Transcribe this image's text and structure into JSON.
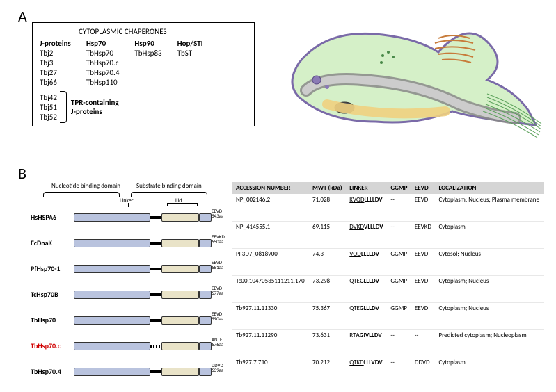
{
  "panelA": {
    "label": "A",
    "box_title": "CYTOPLASMIC CHAPERONES",
    "columns": [
      {
        "head": "J-proteins",
        "items": [
          "Tbj2",
          "Tbj3",
          "Tbj27",
          "Tbj66"
        ]
      },
      {
        "head": "Hsp70",
        "items": [
          "TbHsp70",
          "TbHsp70.c",
          "TbHsp70.4",
          "TbHsp110"
        ]
      },
      {
        "head": "Hsp90",
        "items": [
          "TbHsp83"
        ]
      },
      {
        "head": "Hop/STI",
        "items": [
          "TbSTI"
        ]
      }
    ],
    "tpr": {
      "items": [
        "Tbj42",
        "Tbj51",
        "Tbj52"
      ],
      "label_line1": "TPR-containing",
      "label_line2": "J-proteins"
    }
  },
  "panelB": {
    "label": "B",
    "domain_headers": {
      "nbd": "Nucleotide binding domain",
      "sbd": "Substrate binding domain",
      "linker": "Linker",
      "lid": "Lid"
    },
    "colors": {
      "nbd": "#b9c3de",
      "sbd": "#e9e3c8",
      "lid": "#b9c3de"
    },
    "table_headers": [
      "ACCESSION NUMBER",
      "MWT (kDa)",
      "LINKER",
      "GGMP",
      "EEVD",
      "LOCALIZATION"
    ],
    "proteins": [
      {
        "name": "HsHSPA6",
        "tail": "EEVD",
        "aa": "643aa",
        "dash": false,
        "accession": "NP_002146.2",
        "mwt": "71.028",
        "linker_u": "KVQD",
        "linker_b": "LLLLDV",
        "ggmp": "--",
        "eevd": "EEVD",
        "loc": "Cytoplasm; Nucleus; Plasma membrane"
      },
      {
        "name": "EcDnaK",
        "tail": "EEVKD",
        "aa": "650aa",
        "dash": false,
        "accession": "NP_414555.1",
        "mwt": "69.115",
        "linker_u": "DVKD",
        "linker_b": "VLLLDV",
        "ggmp": "--",
        "eevd": "EEVKD",
        "loc": "Cytoplasm"
      },
      {
        "name": "PfHsp70-1",
        "tail": "EEVD",
        "aa": "681aa",
        "dash": false,
        "accession": "PF3D7_0818900",
        "mwt": "74.3",
        "linker_u": "VQD",
        "linker_b": "LLLLDV",
        "ggmp": "GGMP",
        "eevd": "EEVD",
        "loc": "Cytosol; Nucleus"
      },
      {
        "name": "TcHsp70B",
        "tail": "EEVD",
        "aa": "677aa",
        "dash": false,
        "accession": "Tc00.10470535111211.170",
        "mwt": "73.298",
        "linker_u": "QTE",
        "linker_b": "GLLLDV",
        "ggmp": "GGMP",
        "eevd": "EEVD",
        "loc": "Cytoplasm; Nucleus"
      },
      {
        "name": "TbHsp70",
        "tail": "EEVD",
        "aa": "690aa",
        "dash": false,
        "accession": "Tb927.11.11330",
        "mwt": "75.367",
        "linker_u": "QTE",
        "linker_b": "GLLLDV",
        "ggmp": "GGMP",
        "eevd": "EEVD",
        "loc": "Cytoplasm; Nucleus"
      },
      {
        "name": "TbHsp70.c",
        "red": true,
        "tail": "ANTE",
        "aa": "676aa",
        "dash": true,
        "accession": "Tb927.11.11290",
        "mwt": "73.631",
        "linker_u": "RT",
        "linker_b": "AGIVLLDV",
        "ggmp": "--",
        "eevd": "--",
        "loc": "Predicted cytoplasm; Nucleoplasm"
      },
      {
        "name": "TbHsp70.4",
        "tail": "DDVD",
        "aa": "639aa",
        "dash": false,
        "accession": "Tb927.7.710",
        "mwt": "70.212",
        "linker_u": "QTKD",
        "linker_b": "LLLVDV",
        "ggmp": "--",
        "eevd": "DDVD",
        "loc": "Cytoplasm"
      }
    ]
  }
}
